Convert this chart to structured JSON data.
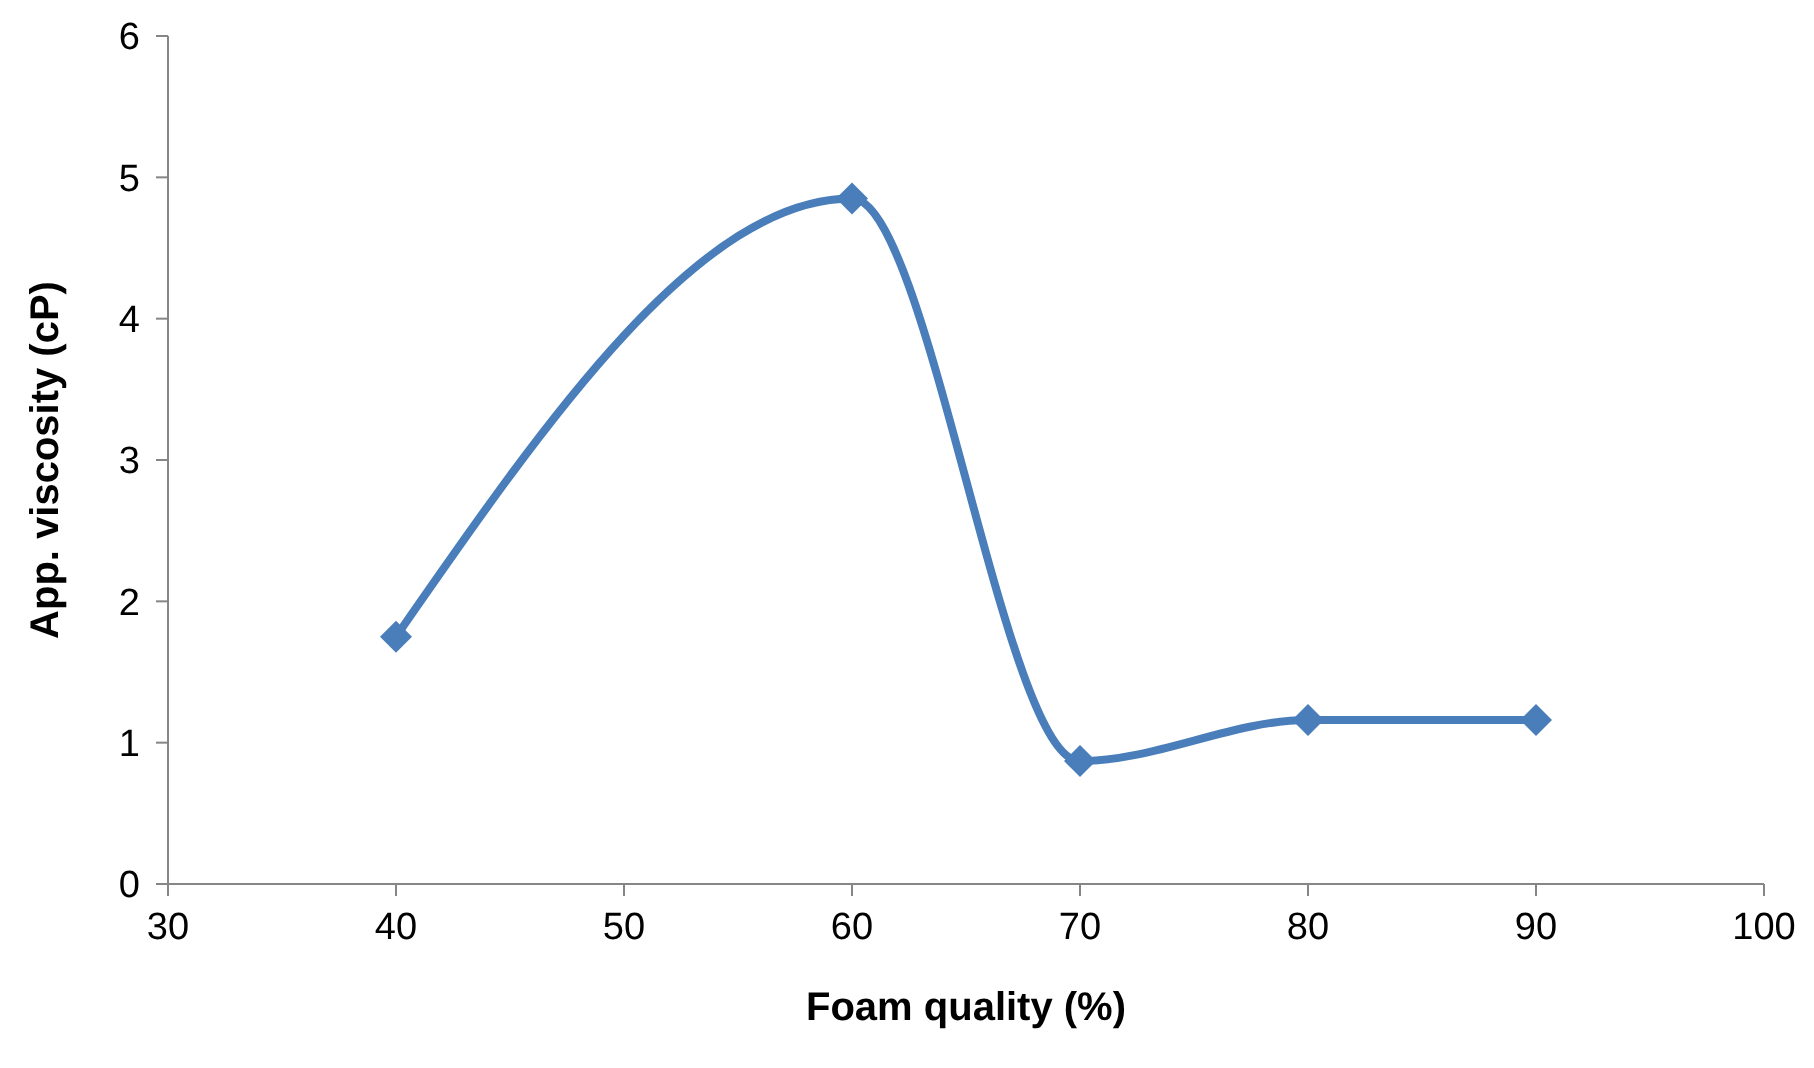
{
  "chart_data": {
    "type": "line",
    "xlabel": "Foam quality (%)",
    "ylabel": "App. viscosity (cP)",
    "x": [
      40,
      60,
      70,
      80,
      90
    ],
    "series": [
      {
        "color": "#4a7ebb",
        "values": [
          1.75,
          4.85,
          0.87,
          1.16,
          1.16
        ]
      }
    ],
    "xlim": [
      30,
      100
    ],
    "xticks": [
      30,
      40,
      50,
      60,
      70,
      80,
      90,
      100
    ],
    "ylim": [
      0,
      6
    ],
    "yticks": [
      0,
      1,
      2,
      3,
      4,
      5,
      6
    ],
    "grid": false,
    "legend": false,
    "marker": "diamond",
    "line_style": "solid"
  }
}
